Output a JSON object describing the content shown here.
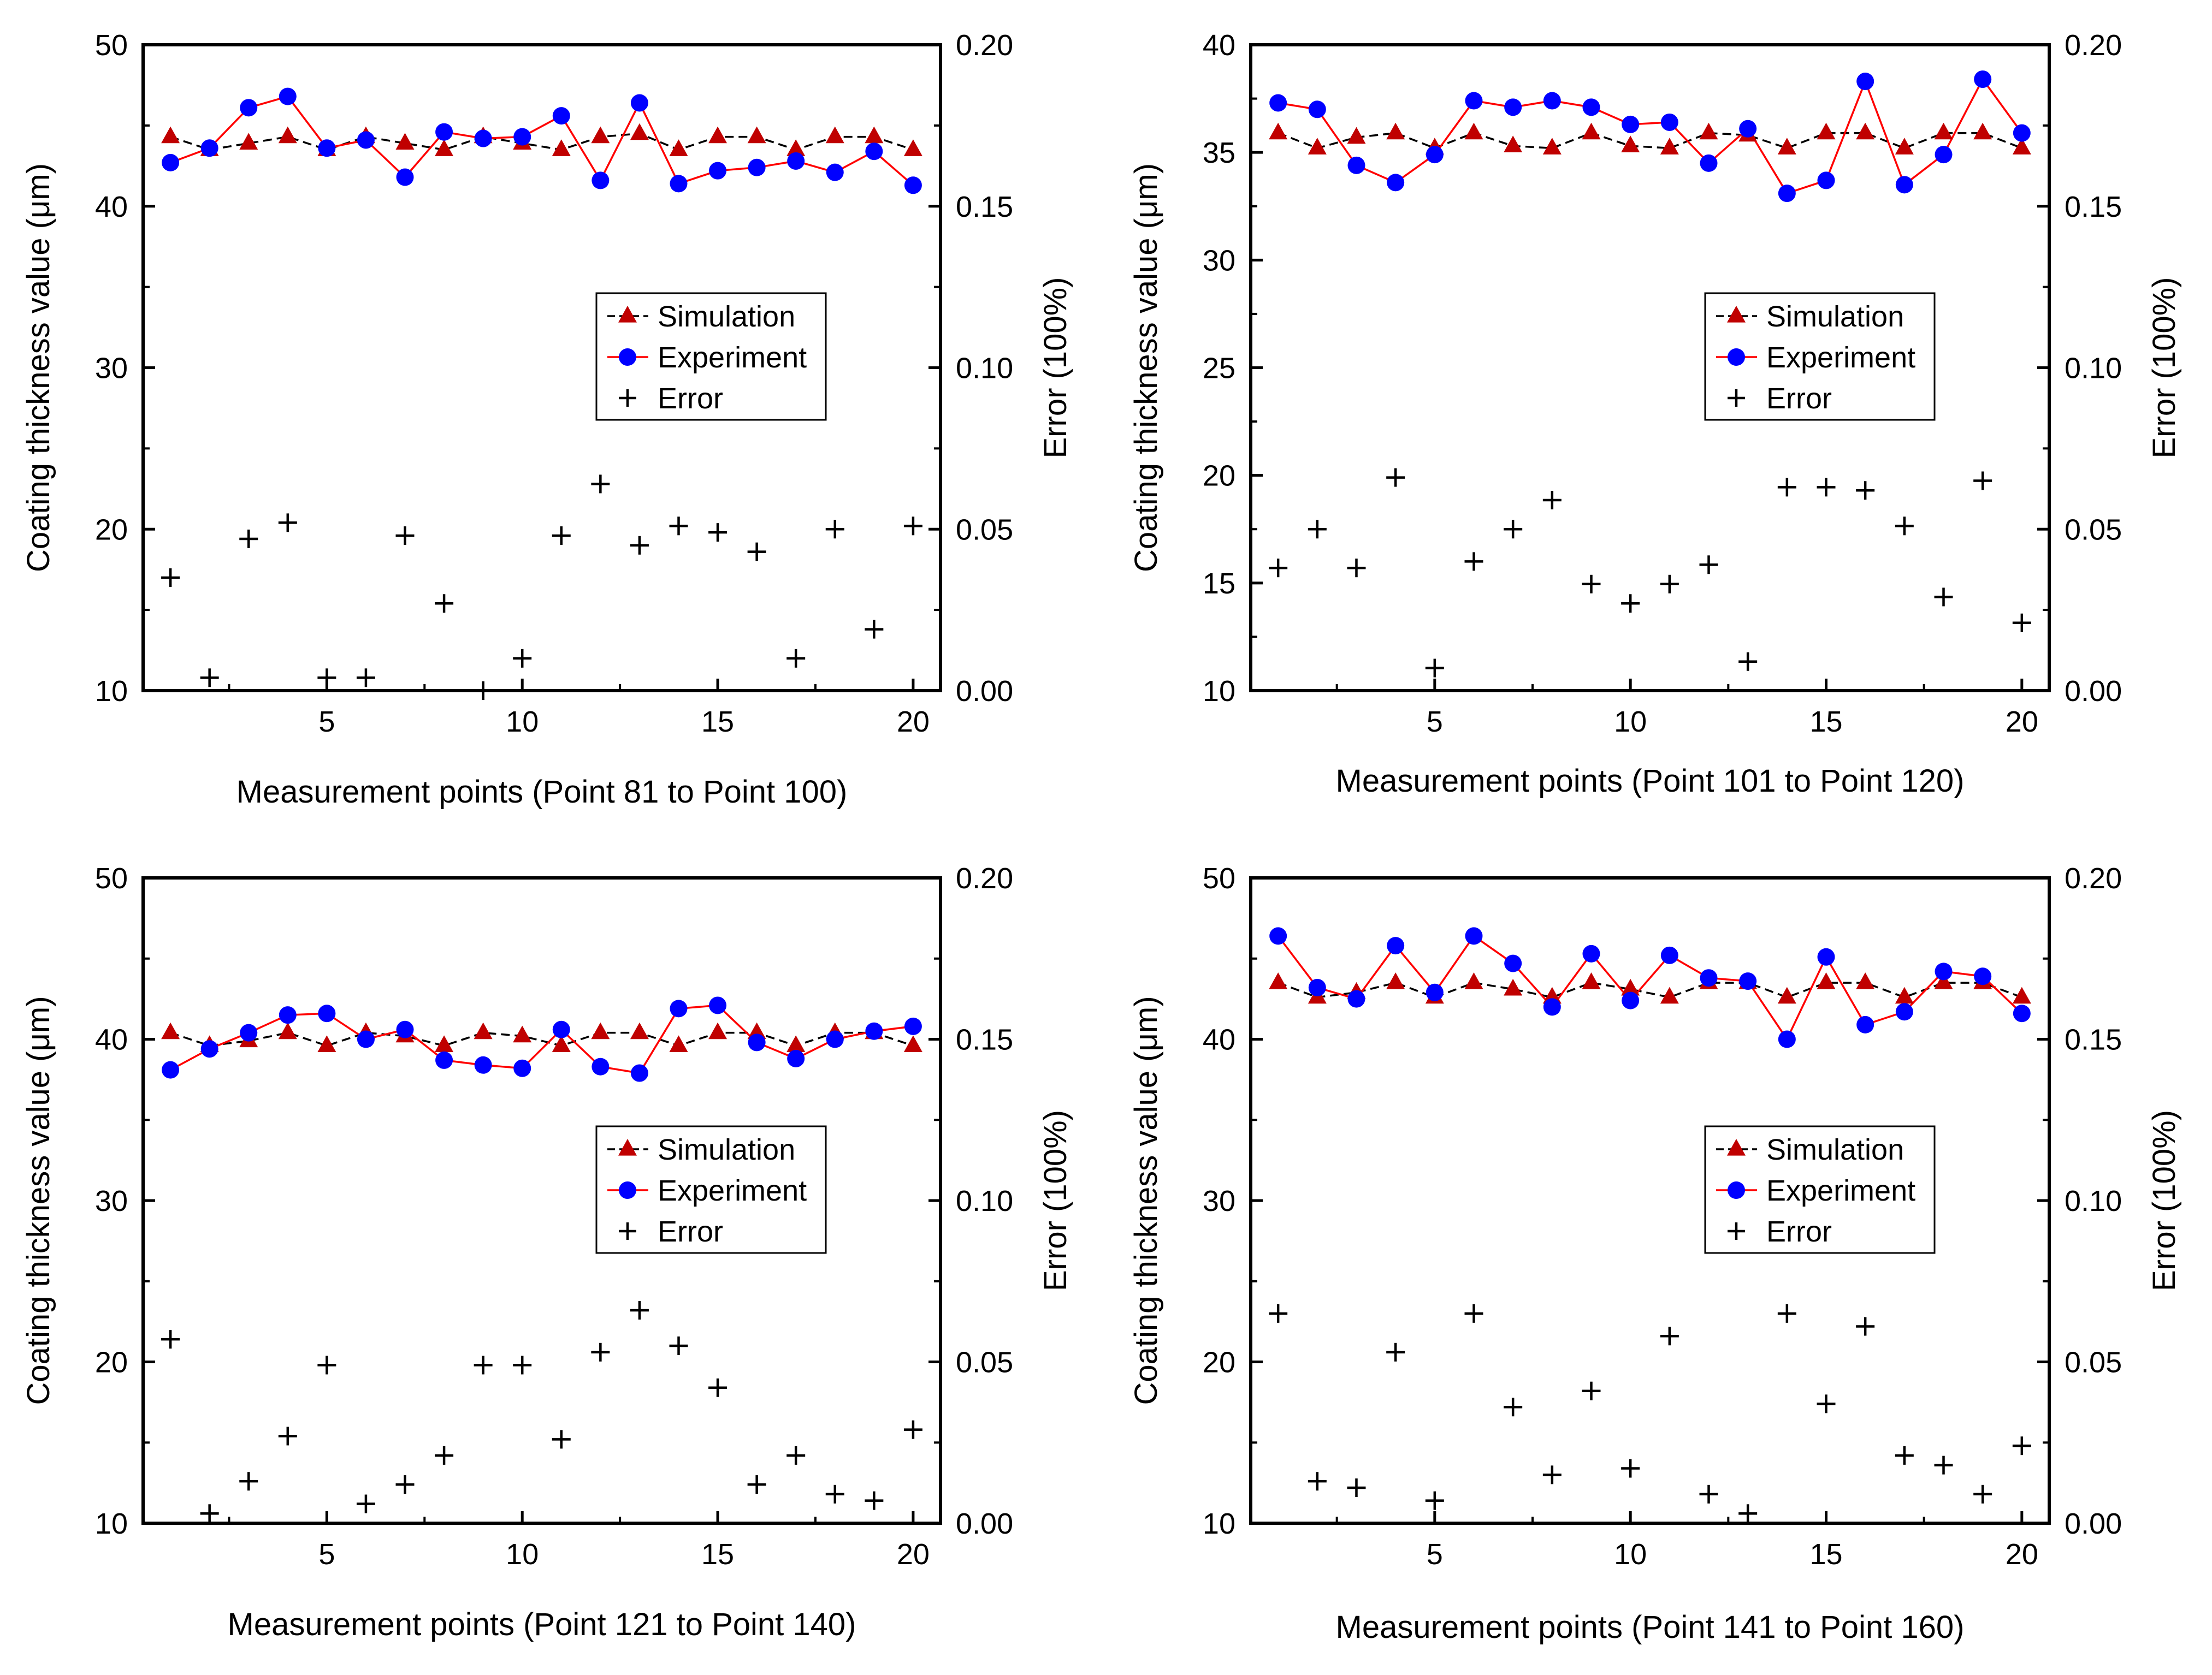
{
  "chart_data": [
    {
      "type": "line",
      "title": "",
      "xlabel": "Measurement points (Point 81 to Point 100)",
      "ylabel": "Coating thickness value (μm)",
      "ylabel_right": "Error (100%)",
      "xlim": [
        0.3,
        20.7
      ],
      "ylim": [
        10,
        50
      ],
      "ylim_right": [
        0.0,
        0.2
      ],
      "x_ticks": [
        "5",
        "10",
        "15",
        "20"
      ],
      "y_ticks": [
        "10",
        "20",
        "30",
        "40",
        "50"
      ],
      "y_right_ticks": [
        "0.00",
        "0.05",
        "0.10",
        "0.15",
        "0.20"
      ],
      "legend": [
        "Simulation",
        "Experiment",
        "Error"
      ],
      "x": [
        1,
        2,
        3,
        4,
        5,
        6,
        7,
        8,
        9,
        10,
        11,
        12,
        13,
        14,
        15,
        16,
        17,
        18,
        19,
        20
      ],
      "series": [
        {
          "name": "Simulation",
          "axis": "left",
          "color": "#c00000",
          "values": [
            44.3,
            43.5,
            43.9,
            44.3,
            43.5,
            44.3,
            43.9,
            43.5,
            44.3,
            43.9,
            43.5,
            44.3,
            44.5,
            43.5,
            44.3,
            44.3,
            43.5,
            44.3,
            44.3,
            43.5
          ]
        },
        {
          "name": "Experiment",
          "axis": "left",
          "color": "#0000ff",
          "values": [
            42.7,
            43.6,
            46.1,
            46.8,
            43.6,
            44.1,
            41.8,
            44.6,
            44.2,
            44.3,
            45.6,
            41.6,
            46.4,
            41.4,
            42.2,
            42.4,
            42.8,
            42.1,
            43.4,
            41.3
          ]
        },
        {
          "name": "Error",
          "axis": "right",
          "color": "#000000",
          "values": [
            0.035,
            0.004,
            0.047,
            0.052,
            0.004,
            0.004,
            0.048,
            0.027,
            0.0,
            0.01,
            0.048,
            0.064,
            0.045,
            0.051,
            0.049,
            0.043,
            0.01,
            0.05,
            0.019,
            0.051
          ]
        }
      ]
    },
    {
      "type": "line",
      "title": "",
      "xlabel": "Measurement points (Point 101 to Point 120)",
      "ylabel": "Coating thickness value (μm)",
      "ylabel_right": "Error (100%)",
      "xlim": [
        0.3,
        20.7
      ],
      "ylim": [
        10,
        40
      ],
      "ylim_right": [
        0.0,
        0.2
      ],
      "x_ticks": [
        "5",
        "10",
        "15",
        "20"
      ],
      "y_ticks": [
        "10",
        "15",
        "20",
        "25",
        "30",
        "35",
        "40"
      ],
      "y_right_ticks": [
        "0.00",
        "0.05",
        "0.10",
        "0.15",
        "0.20"
      ],
      "legend": [
        "Simulation",
        "Experiment",
        "Error"
      ],
      "x": [
        1,
        2,
        3,
        4,
        5,
        6,
        7,
        8,
        9,
        10,
        11,
        12,
        13,
        14,
        15,
        16,
        17,
        18,
        19,
        20
      ],
      "series": [
        {
          "name": "Simulation",
          "axis": "left",
          "color": "#c00000",
          "values": [
            35.9,
            35.2,
            35.7,
            35.9,
            35.2,
            35.9,
            35.3,
            35.2,
            35.9,
            35.3,
            35.2,
            35.9,
            35.8,
            35.2,
            35.9,
            35.9,
            35.2,
            35.9,
            35.9,
            35.2
          ]
        },
        {
          "name": "Experiment",
          "axis": "left",
          "color": "#0000ff",
          "values": [
            37.3,
            37.0,
            34.4,
            33.6,
            34.9,
            37.4,
            37.1,
            37.4,
            37.1,
            36.3,
            36.4,
            34.5,
            36.1,
            33.1,
            33.7,
            38.3,
            33.5,
            34.9,
            38.4,
            35.9
          ]
        },
        {
          "name": "Error",
          "axis": "right",
          "color": "#000000",
          "values": [
            0.038,
            0.05,
            0.038,
            0.066,
            0.007,
            0.04,
            0.05,
            0.059,
            0.033,
            0.027,
            0.033,
            0.039,
            0.009,
            0.063,
            0.063,
            0.062,
            0.051,
            0.029,
            0.065,
            0.021
          ]
        }
      ]
    },
    {
      "type": "line",
      "title": "",
      "xlabel": "Measurement points (Point 121 to Point 140)",
      "ylabel": "Coating thickness value (μm)",
      "ylabel_right": "Error (100%)",
      "xlim": [
        0.3,
        20.7
      ],
      "ylim": [
        10,
        50
      ],
      "ylim_right": [
        0.0,
        0.2
      ],
      "x_ticks": [
        "5",
        "10",
        "15",
        "20"
      ],
      "y_ticks": [
        "10",
        "20",
        "30",
        "40",
        "50"
      ],
      "y_right_ticks": [
        "0.00",
        "0.05",
        "0.10",
        "0.15",
        "0.20"
      ],
      "legend": [
        "Simulation",
        "Experiment",
        "Error"
      ],
      "x": [
        1,
        2,
        3,
        4,
        5,
        6,
        7,
        8,
        9,
        10,
        11,
        12,
        13,
        14,
        15,
        16,
        17,
        18,
        19,
        20
      ],
      "series": [
        {
          "name": "Simulation",
          "axis": "left",
          "color": "#c00000",
          "values": [
            40.4,
            39.6,
            39.9,
            40.4,
            39.6,
            40.4,
            40.2,
            39.6,
            40.4,
            40.2,
            39.6,
            40.4,
            40.4,
            39.6,
            40.4,
            40.4,
            39.6,
            40.4,
            40.4,
            39.6
          ]
        },
        {
          "name": "Experiment",
          "axis": "left",
          "color": "#0000ff",
          "values": [
            38.1,
            39.4,
            40.4,
            41.5,
            41.6,
            40.0,
            40.6,
            38.7,
            38.4,
            38.2,
            40.6,
            38.3,
            37.9,
            41.9,
            42.1,
            39.8,
            38.8,
            40.0,
            40.5,
            40.8
          ]
        },
        {
          "name": "Error",
          "axis": "right",
          "color": "#000000",
          "values": [
            0.057,
            0.003,
            0.013,
            0.027,
            0.049,
            0.006,
            0.012,
            0.021,
            0.049,
            0.049,
            0.026,
            0.053,
            0.066,
            0.055,
            0.042,
            0.012,
            0.021,
            0.009,
            0.007,
            0.029
          ]
        }
      ]
    },
    {
      "type": "line",
      "title": "",
      "xlabel": "Measurement points (Point 141 to Point 160)",
      "ylabel": "Coating thickness value (μm)",
      "ylabel_right": "Error (100%)",
      "xlim": [
        0.3,
        20.7
      ],
      "ylim": [
        10,
        50
      ],
      "ylim_right": [
        0.0,
        0.2
      ],
      "x_ticks": [
        "5",
        "10",
        "15",
        "20"
      ],
      "y_ticks": [
        "10",
        "20",
        "30",
        "40",
        "50"
      ],
      "y_right_ticks": [
        "0.00",
        "0.05",
        "0.10",
        "0.15",
        "0.20"
      ],
      "legend": [
        "Simulation",
        "Experiment",
        "Error"
      ],
      "x": [
        1,
        2,
        3,
        4,
        5,
        6,
        7,
        8,
        9,
        10,
        11,
        12,
        13,
        14,
        15,
        16,
        17,
        18,
        19,
        20
      ],
      "series": [
        {
          "name": "Simulation",
          "axis": "left",
          "color": "#c00000",
          "values": [
            43.5,
            42.6,
            42.9,
            43.5,
            42.6,
            43.5,
            43.1,
            42.6,
            43.5,
            43.1,
            42.6,
            43.5,
            43.5,
            42.6,
            43.5,
            43.5,
            42.6,
            43.5,
            43.5,
            42.6
          ]
        },
        {
          "name": "Experiment",
          "axis": "left",
          "color": "#0000ff",
          "values": [
            46.4,
            43.2,
            42.5,
            45.8,
            42.9,
            46.4,
            44.7,
            42.0,
            45.3,
            42.4,
            45.2,
            43.8,
            43.6,
            40.0,
            45.1,
            40.9,
            41.7,
            44.2,
            43.9,
            41.6
          ]
        },
        {
          "name": "Error",
          "axis": "right",
          "color": "#000000",
          "values": [
            0.065,
            0.013,
            0.011,
            0.053,
            0.007,
            0.065,
            0.036,
            0.015,
            0.041,
            0.017,
            0.058,
            0.009,
            0.003,
            0.065,
            0.037,
            0.061,
            0.021,
            0.018,
            0.009,
            0.024
          ]
        }
      ]
    }
  ]
}
